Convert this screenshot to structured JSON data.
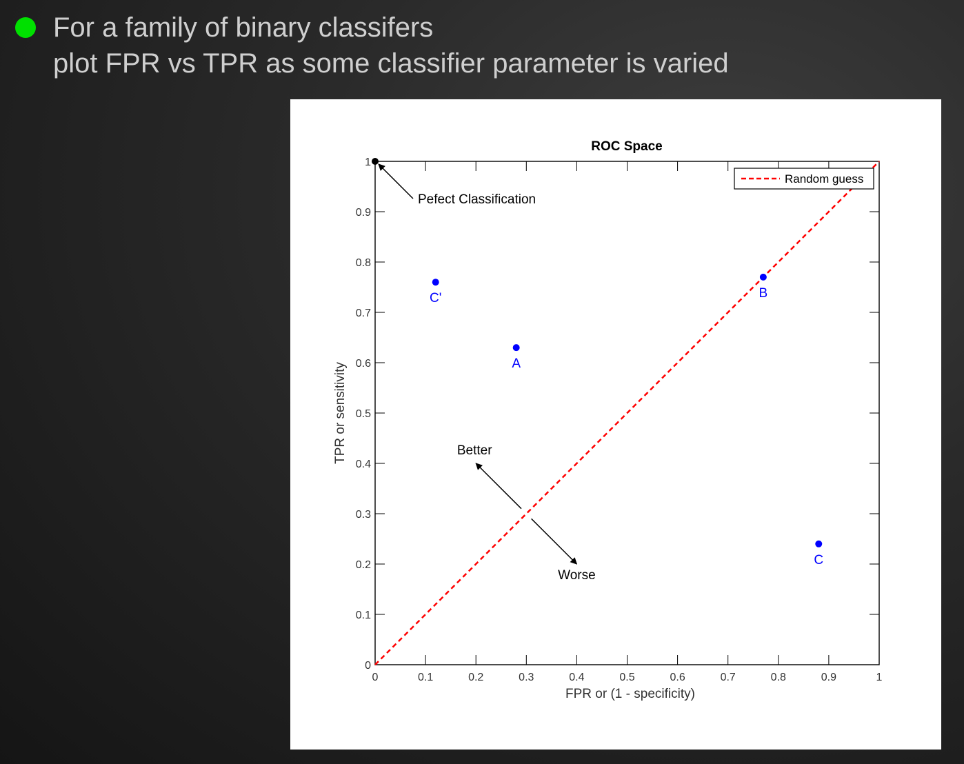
{
  "slide": {
    "bullet_line1": "For a family of binary classifers",
    "bullet_line2": "plot FPR vs TPR as some classifier parameter is varied",
    "bullet_color": "#00e000"
  },
  "chart_data": {
    "type": "scatter",
    "title": "ROC Space",
    "xlabel": "FPR or (1 - specificity)",
    "ylabel": "TPR or sensitivity",
    "xlim": [
      0,
      1
    ],
    "ylim": [
      0,
      1
    ],
    "xticks": [
      0,
      0.1,
      0.2,
      0.3,
      0.4,
      0.5,
      0.6,
      0.7,
      0.8,
      0.9,
      1
    ],
    "xtick_labels": [
      "0",
      "0.1",
      "0.2",
      "0.3",
      "0.4",
      "0.5",
      "0.6",
      "0.7",
      "0.8",
      "0.9",
      "1"
    ],
    "yticks": [
      0,
      0.1,
      0.2,
      0.3,
      0.4,
      0.5,
      0.6,
      0.7,
      0.8,
      0.9,
      1
    ],
    "ytick_labels": [
      "0",
      "0.1",
      "0.2",
      "0.3",
      "0.4",
      "0.5",
      "0.6",
      "0.7",
      "0.8",
      "0.9",
      "1"
    ],
    "grid": false,
    "legend_position": "top-right",
    "points": [
      {
        "label": "A",
        "x": 0.28,
        "y": 0.63,
        "color": "#0000ff"
      },
      {
        "label": "B",
        "x": 0.77,
        "y": 0.77,
        "color": "#0000ff"
      },
      {
        "label": "C",
        "x": 0.88,
        "y": 0.24,
        "color": "#0000ff"
      },
      {
        "label": "C'",
        "x": 0.12,
        "y": 0.76,
        "color": "#0000ff"
      }
    ],
    "perfect_point": {
      "x": 0,
      "y": 1,
      "color": "#000000"
    },
    "random_guess_line": {
      "name": "Random guess",
      "x": [
        0,
        1
      ],
      "y": [
        0,
        1
      ],
      "color": "#ff0000",
      "style": "dashed"
    },
    "annotations": [
      {
        "text": "Pefect Classification",
        "target": [
          0,
          1
        ]
      },
      {
        "text": "Better",
        "from": [
          0.29,
          0.31
        ],
        "to": [
          0.2,
          0.4
        ]
      },
      {
        "text": "Worse",
        "from": [
          0.31,
          0.29
        ],
        "to": [
          0.4,
          0.2
        ]
      }
    ]
  }
}
